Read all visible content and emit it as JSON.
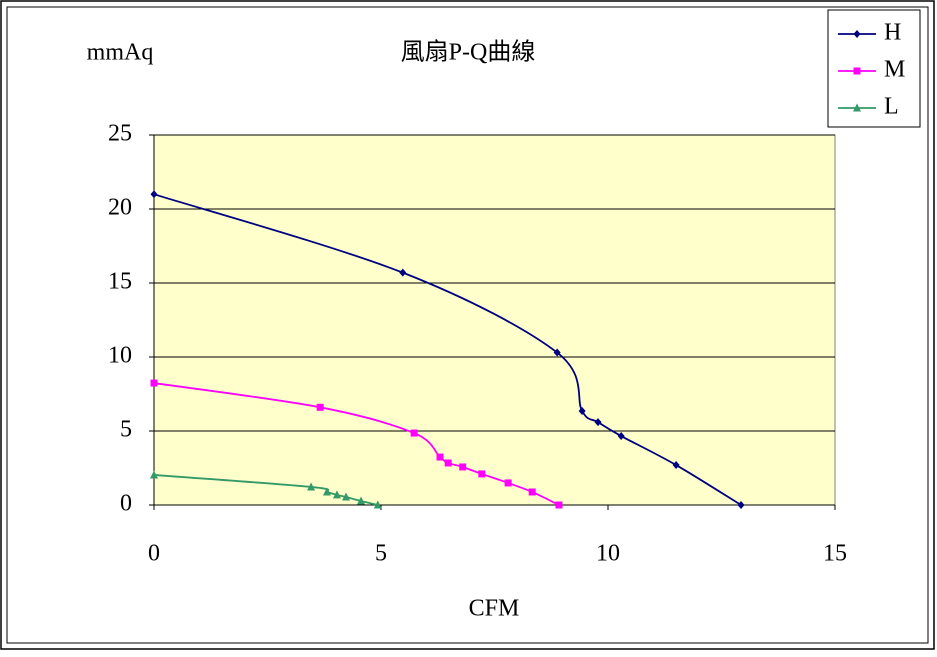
{
  "chart_data": {
    "type": "line",
    "title": "風扇P-Q曲線",
    "y_label": "mmAq",
    "x_label": "CFM",
    "xlim": [
      0,
      15
    ],
    "xticks": [
      0,
      5,
      10,
      15
    ],
    "ylim": [
      0,
      25
    ],
    "yticks": [
      0,
      5,
      10,
      15,
      20,
      25
    ],
    "grid": true,
    "legend": "top-right",
    "background": "#ffffcc",
    "series": [
      {
        "name": "H",
        "color": "#000080",
        "marker": "diamond",
        "x": [
          0,
          5.48,
          8.88,
          9.43,
          9.78,
          10.29,
          11.5,
          12.93
        ],
        "values": [
          21,
          15.7,
          10.3,
          6.35,
          5.6,
          4.66,
          2.7,
          0
        ]
      },
      {
        "name": "M",
        "color": "#ff00ff",
        "marker": "square",
        "x": [
          0,
          3.66,
          5.73,
          6.3,
          6.48,
          6.8,
          7.22,
          7.8,
          8.33,
          8.92
        ],
        "values": [
          8.24,
          6.6,
          4.86,
          3.24,
          2.84,
          2.57,
          2.1,
          1.49,
          0.88,
          0
        ]
      },
      {
        "name": "L",
        "color": "#339966",
        "marker": "triangle",
        "x": [
          0,
          3.46,
          3.81,
          4.03,
          4.23,
          4.56,
          4.93
        ],
        "values": [
          2.03,
          1.22,
          0.88,
          0.68,
          0.54,
          0.27,
          0
        ]
      }
    ]
  }
}
